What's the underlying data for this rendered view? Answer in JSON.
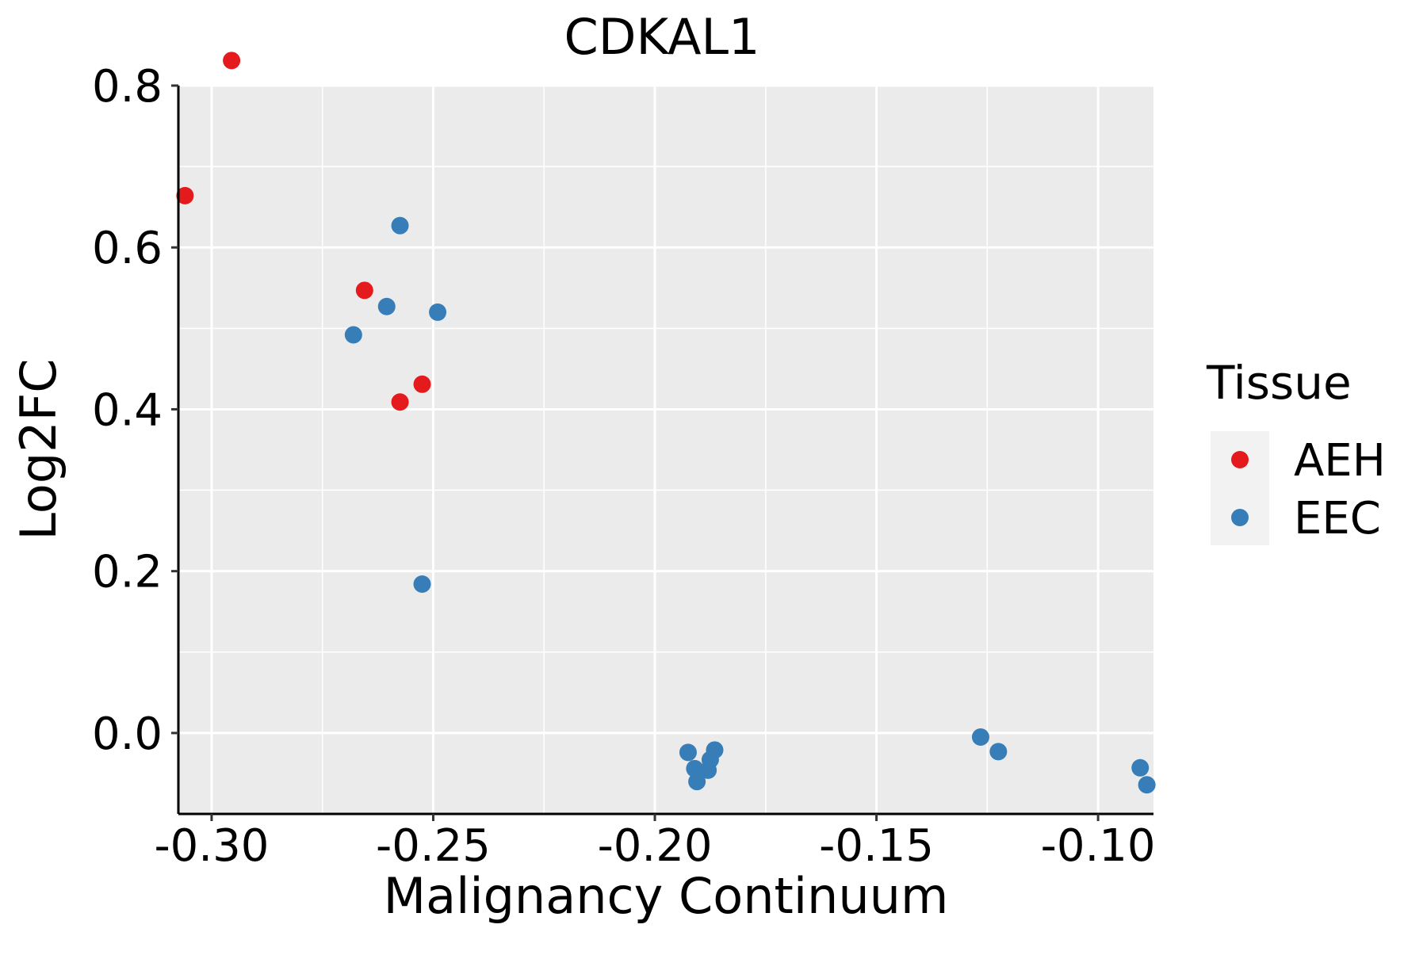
{
  "chart_data": {
    "type": "scatter",
    "title": "CDKAL1",
    "xlabel": "Malignancy Continuum",
    "ylabel": "Log2FC",
    "xlim": [
      -0.3075,
      -0.0875
    ],
    "ylim": [
      -0.1,
      0.8
    ],
    "x_ticks": [
      -0.3,
      -0.25,
      -0.2,
      -0.15,
      -0.1
    ],
    "x_tick_labels": [
      "-0.30",
      "-0.25",
      "-0.20",
      "-0.15",
      "-0.10"
    ],
    "y_ticks": [
      0.0,
      0.2,
      0.4,
      0.6,
      0.8
    ],
    "y_tick_labels": [
      "0.0",
      "0.2",
      "0.4",
      "0.6",
      "0.8"
    ],
    "grid": true,
    "legend": {
      "title": "Tissue",
      "position": "right",
      "entries": [
        {
          "label": "AEH",
          "color": "#E41A1C"
        },
        {
          "label": "EEC",
          "color": "#377EB8"
        }
      ]
    },
    "series": [
      {
        "name": "AEH",
        "color": "#E41A1C",
        "points": [
          {
            "x": -0.2955,
            "y": 0.831
          },
          {
            "x": -0.306,
            "y": 0.664
          },
          {
            "x": -0.2655,
            "y": 0.547
          },
          {
            "x": -0.2525,
            "y": 0.431
          },
          {
            "x": -0.2575,
            "y": 0.409
          }
        ]
      },
      {
        "name": "EEC",
        "color": "#377EB8",
        "points": [
          {
            "x": -0.2575,
            "y": 0.627
          },
          {
            "x": -0.2605,
            "y": 0.527
          },
          {
            "x": -0.249,
            "y": 0.52
          },
          {
            "x": -0.268,
            "y": 0.492
          },
          {
            "x": -0.2525,
            "y": 0.184
          },
          {
            "x": -0.1925,
            "y": -0.024
          },
          {
            "x": -0.191,
            "y": -0.044
          },
          {
            "x": -0.1905,
            "y": -0.06
          },
          {
            "x": -0.188,
            "y": -0.046
          },
          {
            "x": -0.1875,
            "y": -0.033
          },
          {
            "x": -0.1865,
            "y": -0.021
          },
          {
            "x": -0.1265,
            "y": -0.005
          },
          {
            "x": -0.1225,
            "y": -0.023
          },
          {
            "x": -0.0905,
            "y": -0.043
          },
          {
            "x": -0.089,
            "y": -0.064
          }
        ]
      }
    ]
  }
}
